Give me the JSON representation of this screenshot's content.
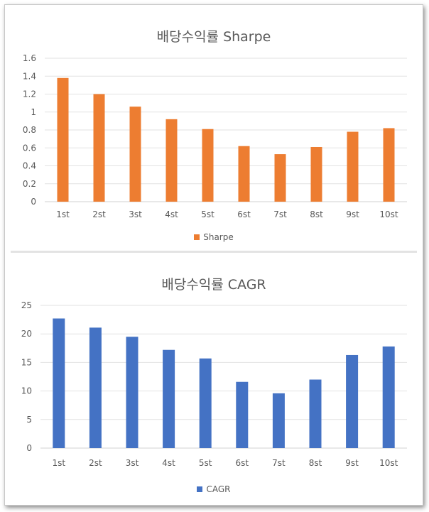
{
  "chart_data": [
    {
      "type": "bar",
      "title": "배당수익률 Sharpe",
      "categories": [
        "1st",
        "2st",
        "3st",
        "4st",
        "5st",
        "6st",
        "7st",
        "8st",
        "9st",
        "10st"
      ],
      "series": [
        {
          "name": "Sharpe",
          "color": "#ED7D31",
          "values": [
            1.38,
            1.2,
            1.06,
            0.92,
            0.81,
            0.62,
            0.53,
            0.61,
            0.78,
            0.82
          ]
        }
      ],
      "ylim": [
        0,
        1.6
      ],
      "yticks": [
        "0",
        "0.2",
        "0.4",
        "0.6",
        "0.8",
        "1",
        "1.2",
        "1.4",
        "1.6"
      ],
      "grid": true,
      "legend": "bottom"
    },
    {
      "type": "bar",
      "title": "배당수익률 CAGR",
      "categories": [
        "1st",
        "2st",
        "3st",
        "4st",
        "5st",
        "6st",
        "7st",
        "8st",
        "9st",
        "10st"
      ],
      "series": [
        {
          "name": "CAGR",
          "color": "#4472C4",
          "values": [
            22.7,
            21.1,
            19.5,
            17.2,
            15.7,
            11.6,
            9.6,
            12.0,
            16.3,
            17.8
          ]
        }
      ],
      "ylim": [
        0,
        25
      ],
      "yticks": [
        "0",
        "5",
        "10",
        "15",
        "20",
        "25"
      ],
      "grid": true,
      "legend": "bottom"
    }
  ]
}
